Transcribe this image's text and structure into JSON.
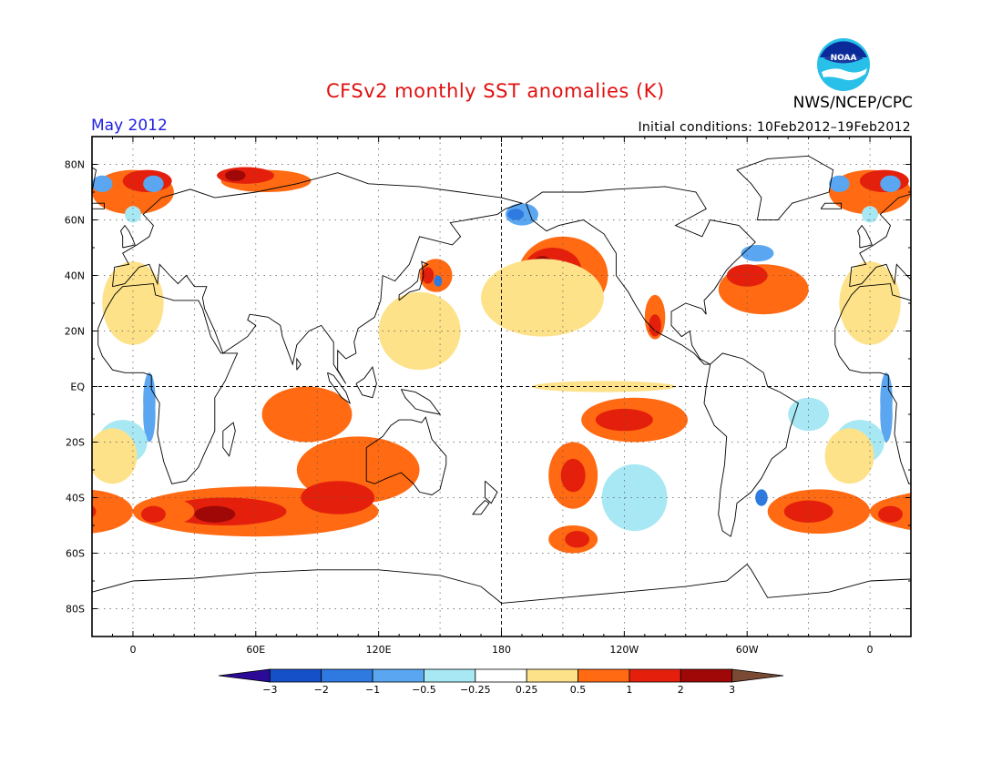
{
  "title": "CFSv2 monthly SST anomalies (K)",
  "period": "May 2012",
  "initial_conditions": "Initial conditions: 10Feb2012–19Feb2012",
  "agency": "NWS/NCEP/CPC",
  "logo_text": "NOAA",
  "map": {
    "lat_labels": [
      "80N",
      "60N",
      "40N",
      "20N",
      "EQ",
      "20S",
      "40S",
      "60S",
      "80S"
    ],
    "lon_labels": [
      "0",
      "60E",
      "120E",
      "180",
      "120W",
      "60W",
      "0"
    ],
    "lon_range": [
      -20,
      380
    ],
    "lat_range": [
      -90,
      90
    ]
  },
  "colorbar": {
    "labels": [
      "−3",
      "−2",
      "−1",
      "−0.5",
      "−0.25",
      "0.25",
      "0.5",
      "1",
      "2",
      "3"
    ],
    "colors": [
      "#2a0a96",
      "#1650c8",
      "#2f7ae0",
      "#5aa6f0",
      "#a8e8f4",
      "#ffffff",
      "#fde28a",
      "#ff6a12",
      "#e4200c",
      "#a00808",
      "#7a4a34"
    ]
  },
  "anomaly_regions": [
    {
      "level": "0.5",
      "lon": 210,
      "lat": 40,
      "rx": 22,
      "ry": 14
    },
    {
      "level": "1",
      "lon": 205,
      "lat": 42,
      "rx": 14,
      "ry": 8
    },
    {
      "level": "2",
      "lon": 200,
      "lat": 44,
      "rx": 5,
      "ry": 3
    },
    {
      "level": "0.25",
      "lon": 200,
      "lat": 32,
      "rx": 30,
      "ry": 14
    },
    {
      "level": "-0.5",
      "lon": 190,
      "lat": 62,
      "rx": 8,
      "ry": 4
    },
    {
      "level": "-1",
      "lon": 187,
      "lat": 62,
      "rx": 4,
      "ry": 2
    },
    {
      "level": "0.5",
      "lon": 65,
      "lat": 74,
      "rx": 22,
      "ry": 4
    },
    {
      "level": "1",
      "lon": 55,
      "lat": 76,
      "rx": 14,
      "ry": 3
    },
    {
      "level": "2",
      "lon": 50,
      "lat": 76,
      "rx": 5,
      "ry": 2
    },
    {
      "level": "0.5",
      "lon": 360,
      "lat": 70,
      "rx": 20,
      "ry": 8
    },
    {
      "level": "1",
      "lon": 367,
      "lat": 74,
      "rx": 12,
      "ry": 4
    },
    {
      "level": "0.5",
      "lon": 308,
      "lat": 35,
      "rx": 22,
      "ry": 9
    },
    {
      "level": "1",
      "lon": 300,
      "lat": 40,
      "rx": 10,
      "ry": 4
    },
    {
      "level": "-0.5",
      "lon": 305,
      "lat": 48,
      "rx": 8,
      "ry": 3
    },
    {
      "level": "0.5",
      "lon": 255,
      "lat": 25,
      "rx": 5,
      "ry": 8
    },
    {
      "level": "1",
      "lon": 255,
      "lat": 22,
      "rx": 3,
      "ry": 4
    },
    {
      "level": "0.5",
      "lon": 245,
      "lat": -12,
      "rx": 26,
      "ry": 8
    },
    {
      "level": "1",
      "lon": 240,
      "lat": -12,
      "rx": 14,
      "ry": 4
    },
    {
      "level": "0.5",
      "lon": 215,
      "lat": -32,
      "rx": 12,
      "ry": 12
    },
    {
      "level": "1",
      "lon": 215,
      "lat": -32,
      "rx": 6,
      "ry": 6
    },
    {
      "level": "-0.25",
      "lon": 245,
      "lat": -40,
      "rx": 16,
      "ry": 12
    },
    {
      "level": "0.5",
      "lon": 215,
      "lat": -55,
      "rx": 12,
      "ry": 5
    },
    {
      "level": "1",
      "lon": 217,
      "lat": -55,
      "rx": 6,
      "ry": 3
    },
    {
      "level": "0.5",
      "lon": 60,
      "lat": -45,
      "rx": 60,
      "ry": 9
    },
    {
      "level": "1",
      "lon": 45,
      "lat": -45,
      "rx": 30,
      "ry": 5
    },
    {
      "level": "2",
      "lon": 40,
      "lat": -46,
      "rx": 10,
      "ry": 3
    },
    {
      "level": "0.5",
      "lon": 110,
      "lat": -30,
      "rx": 30,
      "ry": 12
    },
    {
      "level": "1",
      "lon": 100,
      "lat": -40,
      "rx": 18,
      "ry": 6
    },
    {
      "level": "0.5",
      "lon": 85,
      "lat": -10,
      "rx": 22,
      "ry": 10
    },
    {
      "level": "0.5",
      "lon": 335,
      "lat": -45,
      "rx": 25,
      "ry": 8
    },
    {
      "level": "1",
      "lon": 330,
      "lat": -45,
      "rx": 12,
      "ry": 4
    },
    {
      "level": "-1",
      "lon": 307,
      "lat": -40,
      "rx": 3,
      "ry": 3
    },
    {
      "level": "0.5",
      "lon": 15,
      "lat": -45,
      "rx": 15,
      "ry": 5
    },
    {
      "level": "1",
      "lon": 10,
      "lat": -46,
      "rx": 6,
      "ry": 3
    },
    {
      "level": "-0.5",
      "lon": 8,
      "lat": -5,
      "rx": 3,
      "ry": 10
    },
    {
      "level": "-0.5",
      "lon": 368,
      "lat": -10,
      "rx": 3,
      "ry": 10
    },
    {
      "level": "-0.25",
      "lon": 330,
      "lat": -10,
      "rx": 10,
      "ry": 6
    },
    {
      "level": "-0.25",
      "lon": -5,
      "lat": -20,
      "rx": 12,
      "ry": 8
    },
    {
      "level": "0.25",
      "lon": 350,
      "lat": -25,
      "rx": 12,
      "ry": 10
    },
    {
      "level": "0.25",
      "lon": 230,
      "lat": 0,
      "rx": 35,
      "ry": 2
    },
    {
      "level": "0.5",
      "lon": 148,
      "lat": 40,
      "rx": 8,
      "ry": 6
    },
    {
      "level": "1",
      "lon": 144,
      "lat": 40,
      "rx": 3,
      "ry": 3
    },
    {
      "level": "-1",
      "lon": 149,
      "lat": 38,
      "rx": 2,
      "ry": 2
    },
    {
      "level": "0.25",
      "lon": 140,
      "lat": 20,
      "rx": 20,
      "ry": 14
    },
    {
      "level": "-0.5",
      "lon": 10,
      "lat": 73,
      "rx": 5,
      "ry": 3
    },
    {
      "level": "-0.5",
      "lon": 345,
      "lat": 73,
      "rx": 5,
      "ry": 3
    },
    {
      "level": "0.25",
      "lon": 360,
      "lat": 30,
      "rx": 15,
      "ry": 15
    },
    {
      "level": "-0.25",
      "lon": 0,
      "lat": 62,
      "rx": 4,
      "ry": 3
    }
  ]
}
